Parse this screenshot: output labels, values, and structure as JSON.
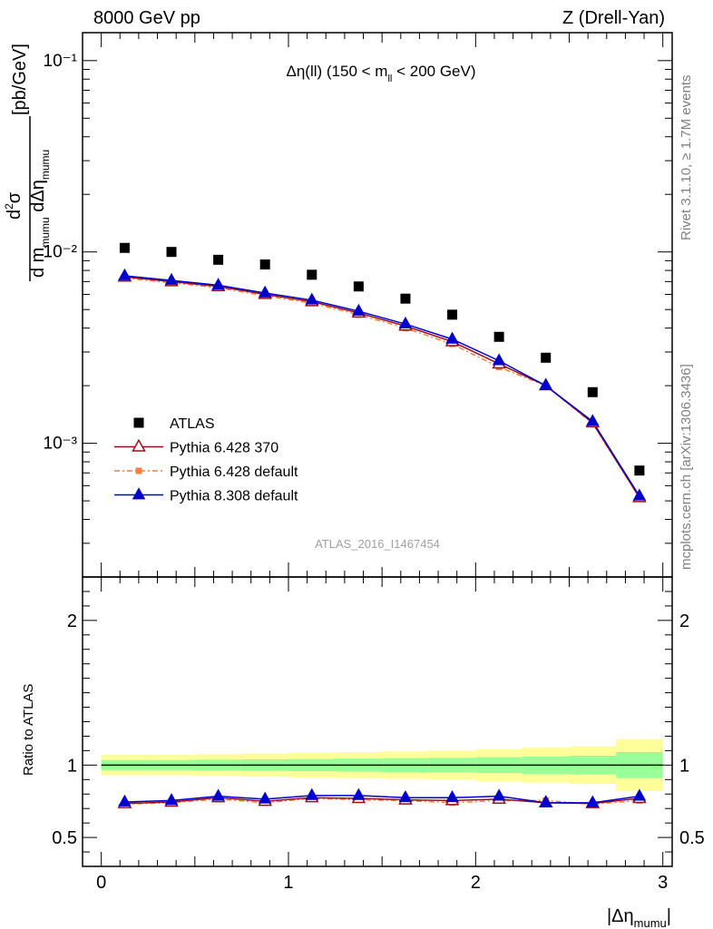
{
  "header": {
    "left": "8000 GeV pp",
    "right": "Z (Drell-Yan)"
  },
  "side_labels": {
    "rivet": "Rivet 3.1.10, ≥ 1.7M events",
    "mcplots": "mcplots.cern.ch [arXiv:1306.3436]"
  },
  "watermark": "ATLAS_2016_I1467454",
  "colors": {
    "atlas": "#000000",
    "py6_370": "#9a0e1c",
    "py6_default": "#f2813b",
    "py8_default": "#0000cc",
    "band_outer": "#ffff99",
    "band_inner": "#99ff99"
  },
  "chart_data": [
    {
      "type": "scatter",
      "title": "Δη(ll) (150 < m_ll < 200 GeV)",
      "ylabel": "d²σ / d m_mumu dΔη_mumu [pb/GeV]",
      "yscale": "log",
      "ylim": [
        0.0002,
        0.14
      ],
      "xlim": [
        -0.1,
        3.05
      ],
      "y_ticks": [
        "10⁻¹",
        "10⁻²",
        "10⁻³"
      ],
      "legend_placement": "lower-left",
      "x": [
        0.125,
        0.375,
        0.625,
        0.875,
        1.125,
        1.375,
        1.625,
        1.875,
        2.125,
        2.375,
        2.625,
        2.875
      ],
      "series": [
        {
          "name": "ATLAS",
          "marker": "filled-square",
          "values": [
            0.0105,
            0.01,
            0.0091,
            0.0086,
            0.0076,
            0.0066,
            0.0057,
            0.0047,
            0.0036,
            0.0028,
            0.00185,
            0.00072
          ]
        },
        {
          "name": "Pythia 6.428 370",
          "marker": "open-triangle",
          "values": [
            0.0074,
            0.007,
            0.0066,
            0.006,
            0.0055,
            0.0048,
            0.0041,
            0.0034,
            0.0026,
            0.002,
            0.00128,
            0.00052
          ]
        },
        {
          "name": "Pythia 6.428 default",
          "marker": "filled-square-small",
          "values": [
            0.0073,
            0.0069,
            0.0065,
            0.0059,
            0.0054,
            0.0047,
            0.004,
            0.0033,
            0.0025,
            0.002,
            0.00127,
            0.00052
          ]
        },
        {
          "name": "Pythia 8.308 default",
          "marker": "filled-triangle",
          "values": [
            0.0075,
            0.0071,
            0.0067,
            0.0061,
            0.0056,
            0.0049,
            0.0042,
            0.0035,
            0.0027,
            0.002,
            0.0013,
            0.00053
          ]
        }
      ]
    },
    {
      "type": "line",
      "xlabel": "|Δη_mumu|",
      "ylabel": "Ratio to ATLAS",
      "ylim": [
        0.3,
        2.3
      ],
      "xlim": [
        -0.1,
        3.05
      ],
      "x_ticks": [
        "0",
        "1",
        "2",
        "3"
      ],
      "y_ticks": [
        "0.5",
        "1",
        "2"
      ],
      "x": [
        0.125,
        0.375,
        0.625,
        0.875,
        1.125,
        1.375,
        1.625,
        1.875,
        2.125,
        2.375,
        2.625,
        2.875
      ],
      "bands": {
        "inner": [
          0.035,
          0.035,
          0.038,
          0.04,
          0.042,
          0.045,
          0.048,
          0.05,
          0.055,
          0.06,
          0.065,
          0.09
        ],
        "outer": [
          0.07,
          0.07,
          0.075,
          0.08,
          0.085,
          0.09,
          0.095,
          0.1,
          0.11,
          0.12,
          0.13,
          0.18
        ]
      },
      "series": [
        {
          "name": "Pythia 6.428 370",
          "values": [
            0.735,
            0.745,
            0.775,
            0.75,
            0.775,
            0.77,
            0.76,
            0.755,
            0.765,
            0.74,
            0.735,
            0.77
          ]
        },
        {
          "name": "Pythia 6.428 default",
          "values": [
            0.73,
            0.74,
            0.765,
            0.74,
            0.77,
            0.76,
            0.755,
            0.74,
            0.755,
            0.755,
            0.73,
            0.755
          ]
        },
        {
          "name": "Pythia 8.308 default",
          "values": [
            0.745,
            0.755,
            0.785,
            0.765,
            0.79,
            0.79,
            0.775,
            0.775,
            0.785,
            0.74,
            0.74,
            0.785
          ]
        }
      ]
    }
  ]
}
